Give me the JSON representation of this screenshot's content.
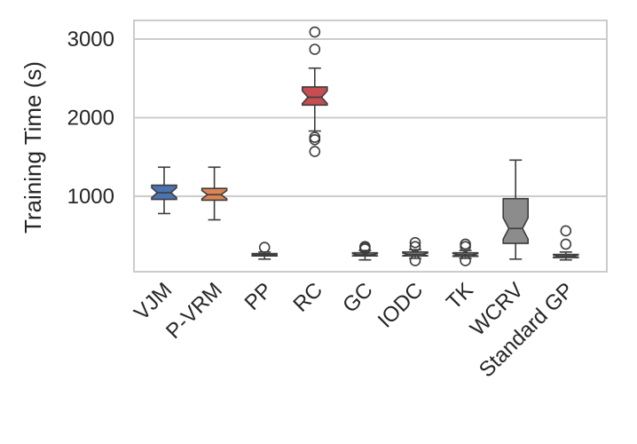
{
  "chart_data": {
    "type": "box",
    "title": "",
    "xlabel": "",
    "ylabel": "Training Time (s)",
    "ylim": [
      -100,
      3250
    ],
    "yticks": [
      1000,
      2000,
      3000
    ],
    "grid": "horizontal",
    "notched": true,
    "categories": [
      "VJM",
      "P-VRM",
      "PP",
      "RC",
      "GC",
      "IODC",
      "TK",
      "WCRV",
      "Standard GP"
    ],
    "boxes": [
      {
        "category": "VJM",
        "color": "#4c72b0",
        "q1": 960,
        "median": 1045,
        "q3": 1140,
        "whisker_low": 780,
        "whisker_high": 1370,
        "outliers": []
      },
      {
        "category": "P-VRM",
        "color": "#dd8452",
        "q1": 950,
        "median": 1020,
        "q3": 1100,
        "whisker_low": 700,
        "whisker_high": 1370,
        "outliers": []
      },
      {
        "category": "PP",
        "color": "#8c8c8c",
        "q1": 240,
        "median": 255,
        "q3": 270,
        "whisker_low": 200,
        "whisker_high": 290,
        "outliers": [
          350
        ]
      },
      {
        "category": "RC",
        "color": "#c44e52",
        "q1": 2160,
        "median": 2260,
        "q3": 2390,
        "whisker_low": 1830,
        "whisker_high": 2630,
        "outliers": [
          3090,
          2870,
          1750,
          1720,
          1570
        ]
      },
      {
        "category": "GC",
        "color": "#8c8c8c",
        "q1": 240,
        "median": 255,
        "q3": 280,
        "whisker_low": 190,
        "whisker_high": 310,
        "outliers": [
          330,
          350,
          360
        ]
      },
      {
        "category": "IODC",
        "color": "#8c8c8c",
        "q1": 240,
        "median": 260,
        "q3": 290,
        "whisker_low": 210,
        "whisker_high": 320,
        "outliers": [
          360,
          410,
          180
        ]
      },
      {
        "category": "TK",
        "color": "#8c8c8c",
        "q1": 235,
        "median": 255,
        "q3": 280,
        "whisker_low": 210,
        "whisker_high": 310,
        "outliers": [
          360,
          390,
          180
        ]
      },
      {
        "category": "WCRV",
        "color": "#8c8c8c",
        "q1": 400,
        "median": 590,
        "q3": 970,
        "whisker_low": 200,
        "whisker_high": 1460,
        "outliers": []
      },
      {
        "category": "Standard GP",
        "color": "#8c8c8c",
        "q1": 220,
        "median": 240,
        "q3": 260,
        "whisker_low": 190,
        "whisker_high": 290,
        "outliers": [
          390,
          560
        ]
      }
    ]
  }
}
